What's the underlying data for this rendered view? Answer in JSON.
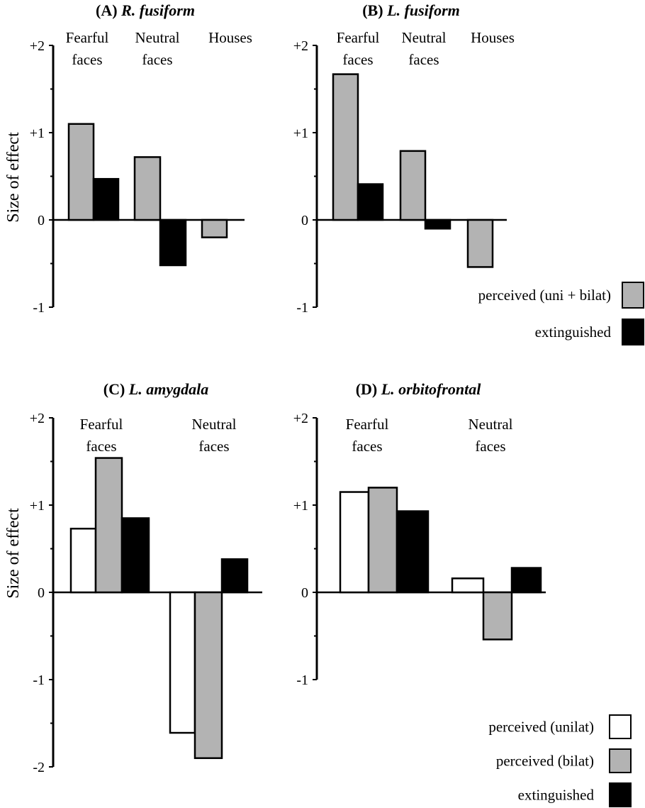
{
  "chart_data": [
    {
      "type": "bar",
      "title_letter": "(A)",
      "title_name": "R. fusiform",
      "ylabel": "Size of effect",
      "ylim": [
        -1,
        2
      ],
      "yticks": [
        "+2",
        "+1",
        "0",
        "-1"
      ],
      "categories": [
        [
          "Fearful",
          "faces"
        ],
        [
          "Neutral",
          "faces"
        ],
        [
          "Houses"
        ]
      ],
      "series": [
        {
          "name": "perceived (uni + bilat)",
          "color": "#b3b3b3",
          "values": [
            1.1,
            0.72,
            -0.2
          ]
        },
        {
          "name": "extinguished",
          "color": "#000000",
          "values": [
            0.47,
            -0.52,
            null
          ]
        }
      ]
    },
    {
      "type": "bar",
      "title_letter": "(B)",
      "title_name": "L. fusiform",
      "ylabel": "",
      "ylim": [
        -1,
        2
      ],
      "yticks": [
        "+2",
        "+1",
        "0",
        "-1"
      ],
      "categories": [
        [
          "Fearful",
          "faces"
        ],
        [
          "Neutral",
          "faces"
        ],
        [
          "Houses"
        ]
      ],
      "series": [
        {
          "name": "perceived (uni + bilat)",
          "color": "#b3b3b3",
          "values": [
            1.67,
            0.79,
            -0.54
          ]
        },
        {
          "name": "extinguished",
          "color": "#000000",
          "values": [
            0.41,
            -0.1,
            null
          ]
        }
      ],
      "legend": {
        "placement": "bottom-right",
        "entries": [
          "perceived (uni + bilat)",
          "extinguished"
        ]
      }
    },
    {
      "type": "bar",
      "title_letter": "(C)",
      "title_name": "L. amygdala",
      "ylabel": "Size of effect",
      "ylim": [
        -2,
        2
      ],
      "yticks": [
        "+2",
        "+1",
        "0",
        "-1",
        "-2"
      ],
      "categories": [
        [
          "Fearful",
          "faces"
        ],
        [
          "Neutral",
          "faces"
        ]
      ],
      "series": [
        {
          "name": "perceived (unilat)",
          "color": "#ffffff",
          "values": [
            0.73,
            -1.61
          ]
        },
        {
          "name": "perceived (bilat)",
          "color": "#b3b3b3",
          "values": [
            1.54,
            -1.9
          ]
        },
        {
          "name": "extinguished",
          "color": "#000000",
          "values": [
            0.85,
            0.38
          ]
        }
      ]
    },
    {
      "type": "bar",
      "title_letter": "(D)",
      "title_name": "L. orbitofrontal",
      "ylabel": "",
      "ylim": [
        -1,
        2
      ],
      "yticks": [
        "+2",
        "+1",
        "0",
        "-1"
      ],
      "categories": [
        [
          "Fearful",
          "faces"
        ],
        [
          "Neutral",
          "faces"
        ]
      ],
      "series": [
        {
          "name": "perceived (unilat)",
          "color": "#ffffff",
          "values": [
            1.15,
            0.16
          ]
        },
        {
          "name": "perceived (bilat)",
          "color": "#b3b3b3",
          "values": [
            1.2,
            -0.54
          ]
        },
        {
          "name": "extinguished",
          "color": "#000000",
          "values": [
            0.93,
            0.28
          ]
        }
      ],
      "legend": {
        "placement": "bottom-right",
        "entries": [
          "perceived (unilat)",
          "perceived (bilat)",
          "extinguished"
        ]
      }
    }
  ]
}
